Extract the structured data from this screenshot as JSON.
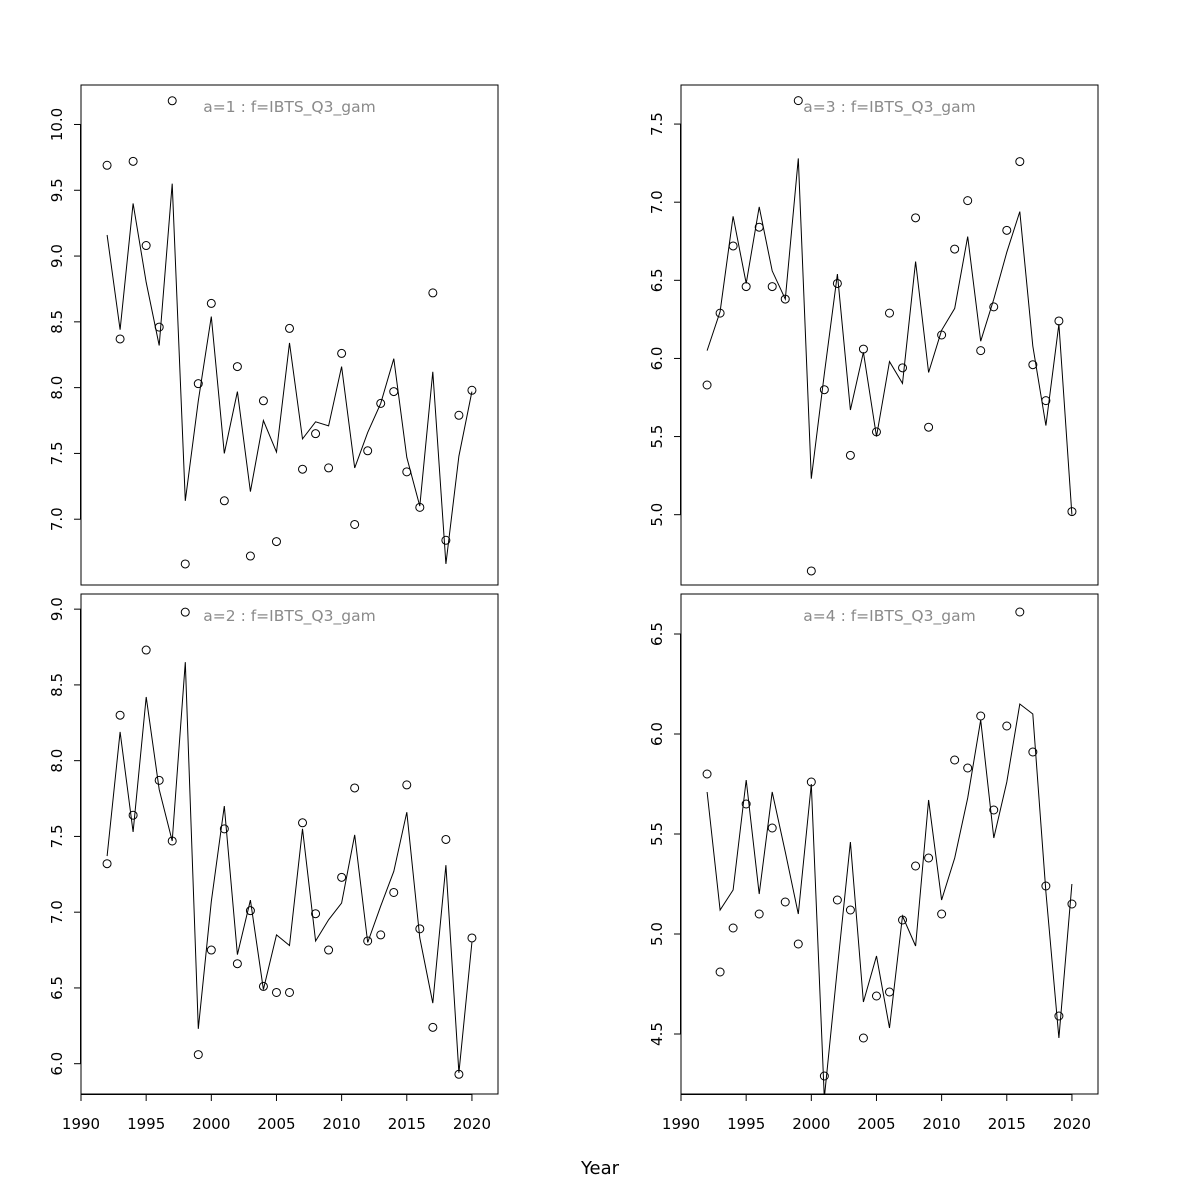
{
  "xlabel": "Year",
  "chart_data": [
    {
      "type": "line",
      "title": "a=1  :  f=IBTS_Q3_gam",
      "xlim": [
        1990,
        2022
      ],
      "ylim": [
        6.5,
        10.3
      ],
      "x_ticks": [
        1990,
        1995,
        2000,
        2005,
        2010,
        2015,
        2020
      ],
      "y_ticks": [
        7.0,
        7.5,
        8.0,
        8.5,
        9.0,
        9.5,
        10.0
      ],
      "y_tick_labels": [
        "7.0",
        "7.5",
        "8.0",
        "8.5",
        "9.0",
        "9.5",
        "10.0"
      ],
      "x": [
        1992,
        1993,
        1994,
        1995,
        1996,
        1997,
        1998,
        1999,
        2000,
        2001,
        2002,
        2003,
        2004,
        2005,
        2006,
        2007,
        2008,
        2009,
        2010,
        2011,
        2012,
        2013,
        2014,
        2015,
        2016,
        2017,
        2018,
        2019,
        2020
      ],
      "series": [
        {
          "style": "points",
          "values": [
            9.69,
            8.37,
            9.72,
            9.08,
            8.46,
            10.18,
            6.66,
            8.03,
            8.64,
            7.14,
            8.16,
            6.72,
            7.9,
            6.83,
            8.45,
            7.38,
            7.65,
            7.39,
            8.26,
            6.96,
            7.52,
            7.88,
            7.97,
            7.36,
            7.09,
            8.72,
            6.84,
            7.79,
            7.98
          ]
        },
        {
          "style": "line",
          "values": [
            9.16,
            8.44,
            9.4,
            8.8,
            8.32,
            9.55,
            7.14,
            7.9,
            8.54,
            7.5,
            7.97,
            7.21,
            7.75,
            7.51,
            8.34,
            7.61,
            7.74,
            7.71,
            8.16,
            7.39,
            7.66,
            7.88,
            8.22,
            7.47,
            7.1,
            8.12,
            6.66,
            7.48,
            7.97
          ]
        }
      ]
    },
    {
      "type": "line",
      "title": "a=2  :  f=IBTS_Q3_gam",
      "xlim": [
        1990,
        2022
      ],
      "ylim": [
        5.8,
        9.1
      ],
      "x_ticks": [
        1990,
        1995,
        2000,
        2005,
        2010,
        2015,
        2020
      ],
      "y_ticks": [
        6.0,
        6.5,
        7.0,
        7.5,
        8.0,
        8.5,
        9.0
      ],
      "y_tick_labels": [
        "6.0",
        "6.5",
        "7.0",
        "7.5",
        "8.0",
        "8.5",
        "9.0"
      ],
      "x": [
        1992,
        1993,
        1994,
        1995,
        1996,
        1997,
        1998,
        1999,
        2000,
        2001,
        2002,
        2003,
        2004,
        2005,
        2006,
        2007,
        2008,
        2009,
        2010,
        2011,
        2012,
        2013,
        2014,
        2015,
        2016,
        2017,
        2018,
        2019,
        2020
      ],
      "series": [
        {
          "style": "points",
          "values": [
            7.32,
            8.3,
            7.64,
            8.73,
            7.87,
            7.47,
            8.98,
            6.06,
            6.75,
            7.55,
            6.66,
            7.01,
            6.51,
            6.47,
            6.47,
            7.59,
            6.99,
            6.75,
            7.23,
            7.82,
            6.81,
            6.85,
            7.13,
            7.84,
            6.89,
            6.24,
            7.48,
            5.93,
            6.83
          ]
        },
        {
          "style": "line",
          "values": [
            7.37,
            8.19,
            7.53,
            8.42,
            7.81,
            7.47,
            8.65,
            6.23,
            7.07,
            7.7,
            6.72,
            7.08,
            6.49,
            6.85,
            6.78,
            7.55,
            6.81,
            6.95,
            7.06,
            7.51,
            6.8,
            7.04,
            7.27,
            7.66,
            6.83,
            6.4,
            7.31,
            5.94,
            6.8
          ]
        }
      ]
    },
    {
      "type": "line",
      "title": "a=3  :  f=IBTS_Q3_gam",
      "xlim": [
        1990,
        2022
      ],
      "ylim": [
        4.55,
        7.75
      ],
      "x_ticks": [
        1990,
        1995,
        2000,
        2005,
        2010,
        2015,
        2020
      ],
      "y_ticks": [
        5.0,
        5.5,
        6.0,
        6.5,
        7.0,
        7.5
      ],
      "y_tick_labels": [
        "5.0",
        "5.5",
        "6.0",
        "6.5",
        "7.0",
        "7.5"
      ],
      "x": [
        1992,
        1993,
        1994,
        1995,
        1996,
        1997,
        1998,
        1999,
        2000,
        2001,
        2002,
        2003,
        2004,
        2005,
        2006,
        2007,
        2008,
        2009,
        2010,
        2011,
        2012,
        2013,
        2014,
        2015,
        2016,
        2017,
        2018,
        2019,
        2020
      ],
      "series": [
        {
          "style": "points",
          "values": [
            5.83,
            6.29,
            6.72,
            6.46,
            6.84,
            6.46,
            6.38,
            7.65,
            4.64,
            5.8,
            6.48,
            5.38,
            6.06,
            5.53,
            6.29,
            5.94,
            6.9,
            5.56,
            6.15,
            6.7,
            7.01,
            6.05,
            6.33,
            6.82,
            7.26,
            5.96,
            5.73,
            6.24,
            5.02
          ]
        },
        {
          "style": "line",
          "values": [
            6.05,
            6.3,
            6.91,
            6.48,
            6.97,
            6.56,
            6.38,
            7.28,
            5.23,
            5.9,
            6.54,
            5.67,
            6.04,
            5.5,
            5.98,
            5.84,
            6.62,
            5.91,
            6.18,
            6.32,
            6.78,
            6.11,
            6.38,
            6.68,
            6.94,
            6.08,
            5.57,
            6.22,
            5.0
          ]
        }
      ]
    },
    {
      "type": "line",
      "title": "a=4  :  f=IBTS_Q3_gam",
      "xlim": [
        1990,
        2022
      ],
      "ylim": [
        4.2,
        6.7
      ],
      "x_ticks": [
        1990,
        1995,
        2000,
        2005,
        2010,
        2015,
        2020
      ],
      "y_ticks": [
        4.5,
        5.0,
        5.5,
        6.0,
        6.5
      ],
      "y_tick_labels": [
        "4.5",
        "5.0",
        "5.5",
        "6.0",
        "6.5"
      ],
      "x": [
        1992,
        1993,
        1994,
        1995,
        1996,
        1997,
        1998,
        1999,
        2000,
        2001,
        2002,
        2003,
        2004,
        2005,
        2006,
        2007,
        2008,
        2009,
        2010,
        2011,
        2012,
        2013,
        2014,
        2015,
        2016,
        2017,
        2018,
        2019,
        2020
      ],
      "series": [
        {
          "style": "points",
          "values": [
            5.8,
            4.81,
            5.03,
            5.65,
            5.1,
            5.53,
            5.16,
            4.95,
            5.76,
            4.29,
            5.17,
            5.12,
            4.48,
            4.69,
            4.71,
            5.07,
            5.34,
            5.38,
            5.1,
            5.87,
            5.83,
            6.09,
            5.62,
            6.04,
            6.61,
            5.91,
            5.24,
            4.59,
            5.15
          ]
        },
        {
          "style": "line",
          "values": [
            5.71,
            5.12,
            5.22,
            5.77,
            5.2,
            5.71,
            5.41,
            5.1,
            5.75,
            4.18,
            4.83,
            5.46,
            4.66,
            4.89,
            4.53,
            5.09,
            4.94,
            5.67,
            5.17,
            5.38,
            5.68,
            6.07,
            5.48,
            5.76,
            6.15,
            6.1,
            5.21,
            4.48,
            5.25
          ]
        }
      ]
    }
  ]
}
